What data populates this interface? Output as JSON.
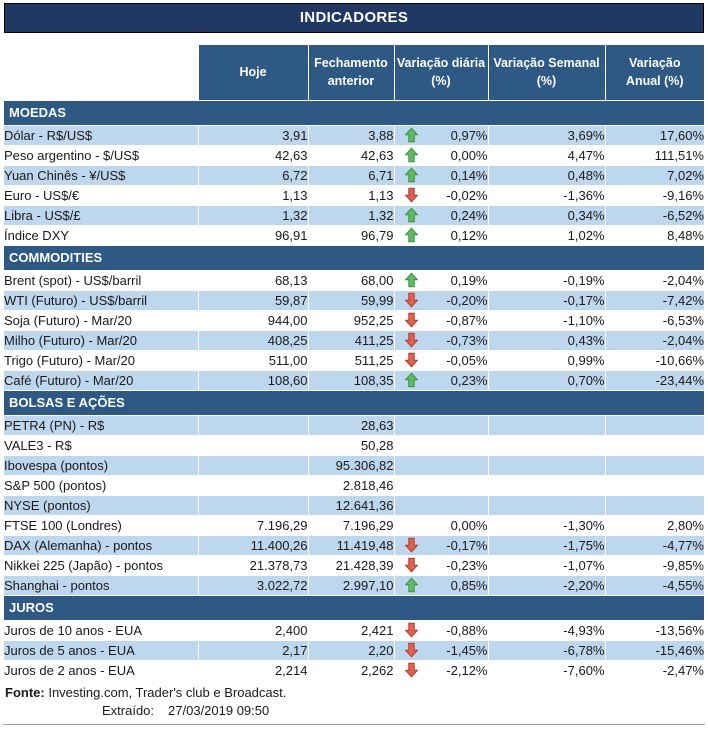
{
  "colors": {
    "title_bg": "#1f3864",
    "header_bg": "#2e5984",
    "section_bg": "#2e5984",
    "stripe_bg": "#bdd7ee",
    "text_color": "#1a1a1a",
    "up_fill": "#5fbb63",
    "up_stroke": "#3c9140",
    "down_fill": "#e2604e",
    "down_stroke": "#b03a2c"
  },
  "chart_data": {
    "type": "table",
    "title": "INDICADORES",
    "columns": [
      "Hoje",
      "Fechamento\nanterior",
      "Variação diária\n(%)",
      "Variação Semanal\n(%)",
      "Variação\nAnual (%)"
    ],
    "sections": [
      {
        "id": "moedas",
        "name": "MOEDAS",
        "rows": [
          {
            "label": "Dólar - R$/US$",
            "hoje": "3,91",
            "prev": "3,88",
            "arrow": "up",
            "daily": "0,97%",
            "weekly": "3,69%",
            "annual": "17,60%",
            "shaded": true
          },
          {
            "label": "Peso argentino - $/US$",
            "hoje": "42,63",
            "prev": "42,63",
            "arrow": "up",
            "daily": "0,00%",
            "weekly": "4,47%",
            "annual": "111,51%",
            "shaded": false
          },
          {
            "label": "Yuan Chinês - ¥/US$",
            "hoje": "6,72",
            "prev": "6,71",
            "arrow": "up",
            "daily": "0,14%",
            "weekly": "0,48%",
            "annual": "7,02%",
            "shaded": true
          },
          {
            "label": "Euro - US$/€",
            "hoje": "1,13",
            "prev": "1,13",
            "arrow": "down",
            "daily": "-0,02%",
            "weekly": "-1,36%",
            "annual": "-9,16%",
            "shaded": false
          },
          {
            "label": "Libra - US$/£",
            "hoje": "1,32",
            "prev": "1,32",
            "arrow": "up",
            "daily": "0,24%",
            "weekly": "0,34%",
            "annual": "-6,52%",
            "shaded": true
          },
          {
            "label": "Índice DXY",
            "hoje": "96,91",
            "prev": "96,79",
            "arrow": "up",
            "daily": "0,12%",
            "weekly": "1,02%",
            "annual": "8,48%",
            "shaded": false
          }
        ]
      },
      {
        "id": "commodities",
        "name": "COMMODITIES",
        "rows": [
          {
            "label": "Brent (spot) - US$/barril",
            "hoje": "68,13",
            "prev": "68,00",
            "arrow": "up",
            "daily": "0,19%",
            "weekly": "-0,19%",
            "annual": "-2,04%",
            "shaded": false
          },
          {
            "label": "WTI (Futuro) - US$/barril",
            "hoje": "59,87",
            "prev": "59,99",
            "arrow": "down",
            "daily": "-0,20%",
            "weekly": "-0,17%",
            "annual": "-7,42%",
            "shaded": true
          },
          {
            "label": "Soja (Futuro) - Mar/20",
            "hoje": "944,00",
            "prev": "952,25",
            "arrow": "down",
            "daily": "-0,87%",
            "weekly": "-1,10%",
            "annual": "-6,53%",
            "shaded": false
          },
          {
            "label": "Milho (Futuro) - Mar/20",
            "hoje": "408,25",
            "prev": "411,25",
            "arrow": "down",
            "daily": "-0,73%",
            "weekly": "0,43%",
            "annual": "-2,04%",
            "shaded": true
          },
          {
            "label": "Trigo (Futuro) - Mar/20",
            "hoje": "511,00",
            "prev": "511,25",
            "arrow": "down",
            "daily": "-0,05%",
            "weekly": "0,99%",
            "annual": "-10,66%",
            "shaded": false
          },
          {
            "label": "Café (Futuro) - Mar/20",
            "hoje": "108,60",
            "prev": "108,35",
            "arrow": "up",
            "daily": "0,23%",
            "weekly": "0,70%",
            "annual": "-23,44%",
            "shaded": true
          }
        ]
      },
      {
        "id": "bolsas",
        "name": "BOLSAS E AÇÕES",
        "rows": [
          {
            "label": "PETR4 (PN) - R$",
            "hoje": "",
            "prev": "28,63",
            "arrow": "",
            "daily": "",
            "weekly": "",
            "annual": "",
            "shaded": true
          },
          {
            "label": "VALE3 - R$",
            "hoje": "",
            "prev": "50,28",
            "arrow": "",
            "daily": "",
            "weekly": "",
            "annual": "",
            "shaded": false
          },
          {
            "label": "Ibovespa (pontos)",
            "hoje": "",
            "prev": "95.306,82",
            "arrow": "",
            "daily": "",
            "weekly": "",
            "annual": "",
            "shaded": true
          },
          {
            "label": "S&P 500 (pontos)",
            "hoje": "",
            "prev": "2.818,46",
            "arrow": "",
            "daily": "",
            "weekly": "",
            "annual": "",
            "shaded": false
          },
          {
            "label": "NYSE (pontos)",
            "hoje": "",
            "prev": "12.641,36",
            "arrow": "",
            "daily": "",
            "weekly": "",
            "annual": "",
            "shaded": true
          },
          {
            "label": "FTSE 100 (Londres)",
            "hoje": "7.196,29",
            "prev": "7.196,29",
            "arrow": "",
            "daily": "0,00%",
            "weekly": "-1,30%",
            "annual": "2,80%",
            "shaded": false
          },
          {
            "label": "DAX (Alemanha) - pontos",
            "hoje": "11.400,26",
            "prev": "11.419,48",
            "arrow": "down",
            "daily": "-0,17%",
            "weekly": "-1,75%",
            "annual": "-4,77%",
            "shaded": true
          },
          {
            "label": "Nikkei 225 (Japão) - pontos",
            "hoje": "21.378,73",
            "prev": "21.428,39",
            "arrow": "down",
            "daily": "-0,23%",
            "weekly": "-1,07%",
            "annual": "-9,85%",
            "shaded": false
          },
          {
            "label": "Shanghai - pontos",
            "hoje": "3.022,72",
            "prev": "2.997,10",
            "arrow": "up",
            "daily": "0,85%",
            "weekly": "-2,20%",
            "annual": "-4,55%",
            "shaded": true
          }
        ]
      },
      {
        "id": "juros",
        "name": "JUROS",
        "rows": [
          {
            "label": "Juros de 10 anos - EUA",
            "hoje": "2,400",
            "prev": "2,421",
            "arrow": "down",
            "daily": "-0,88%",
            "weekly": "-4,93%",
            "annual": "-13,56%",
            "shaded": false
          },
          {
            "label": "Juros de 5 anos - EUA",
            "hoje": "2,17",
            "prev": "2,20",
            "arrow": "down",
            "daily": "-1,45%",
            "weekly": "-6,78%",
            "annual": "-15,46%",
            "shaded": true
          },
          {
            "label": "Juros de 2 anos - EUA",
            "hoje": "2,214",
            "prev": "2,262",
            "arrow": "down",
            "daily": "-2,12%",
            "weekly": "-7,60%",
            "annual": "-2,47%",
            "shaded": false
          }
        ]
      }
    ]
  },
  "footer": {
    "fonte_label": "Fonte:",
    "fonte_text": " Investing.com, Trader's club e Broadcast.",
    "extraido_label": "Extraído:",
    "extraido_value": "27/03/2019 09:50"
  }
}
